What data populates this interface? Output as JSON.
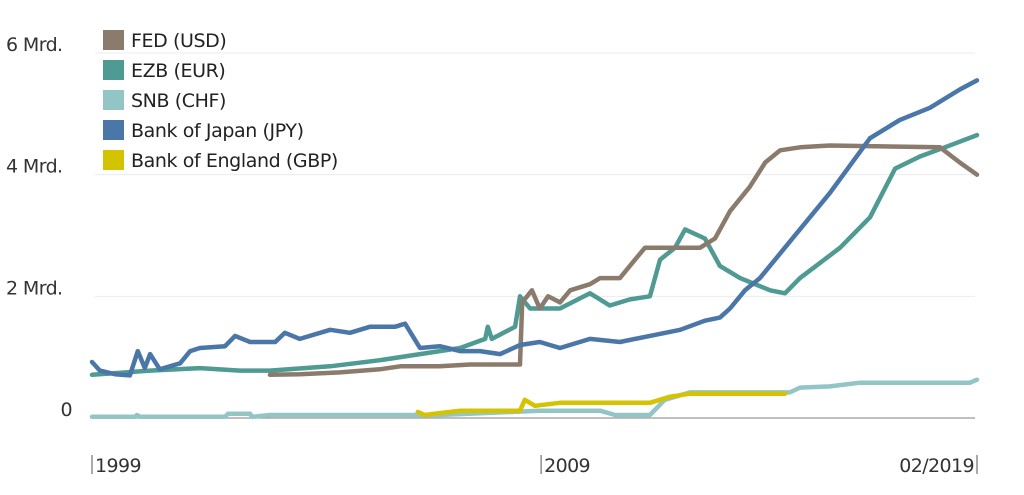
{
  "chart_data": {
    "type": "line",
    "title": "",
    "xlabel": "",
    "ylabel": "",
    "xlim": [
      1999,
      2019.1
    ],
    "ylim": [
      0,
      6
    ],
    "grid": true,
    "legend_placement": "top-left",
    "y_ticks": [
      {
        "value": 0,
        "label": "0"
      },
      {
        "value": 2,
        "label": "2 Mrd."
      },
      {
        "value": 4,
        "label": "4 Mrd."
      },
      {
        "value": 6,
        "label": "6 Mrd."
      }
    ],
    "x_ticks": [
      {
        "value": 1999,
        "label": "1999",
        "side": "right"
      },
      {
        "value": 2009.2,
        "label": "2009",
        "side": "right"
      },
      {
        "value": 2019.1,
        "label": "02/2019",
        "side": "left"
      }
    ],
    "series": [
      {
        "name": "FED (USD)",
        "color": "#8b7b6c",
        "x": [
          2003.04,
          2003.72,
          2004.63,
          2005.54,
          2006.0,
          2006.9,
          2007.59,
          2008.72,
          2008.77,
          2008.99,
          2009.17,
          2009.36,
          2009.63,
          2009.86,
          2010.31,
          2010.54,
          2010.99,
          2011.33,
          2011.56,
          2012.01,
          2012.81,
          2013.15,
          2013.49,
          2013.94,
          2014.29,
          2014.63,
          2015.08,
          2015.76,
          2018.26,
          2018.71,
          2019.1
        ],
        "y": [
          0.71,
          0.72,
          0.75,
          0.8,
          0.85,
          0.85,
          0.88,
          0.88,
          1.9,
          2.1,
          1.8,
          2.0,
          1.9,
          2.1,
          2.2,
          2.3,
          2.3,
          2.6,
          2.8,
          2.8,
          2.8,
          2.95,
          3.4,
          3.8,
          4.2,
          4.4,
          4.45,
          4.48,
          4.45,
          4.2,
          4.0
        ]
      },
      {
        "name": "EZB (EUR)",
        "color": "#4f9a92",
        "x": [
          1999,
          2000.32,
          2001.45,
          2002.36,
          2003.04,
          2004.41,
          2005.54,
          2006.45,
          2007.36,
          2007.93,
          2007.99,
          2008.08,
          2008.61,
          2008.72,
          2008.95,
          2009.63,
          2010.31,
          2010.76,
          2011.22,
          2011.67,
          2011.9,
          2012.24,
          2012.47,
          2012.92,
          2013.26,
          2013.72,
          2014.4,
          2014.74,
          2015.08,
          2015.99,
          2016.67,
          2017.24,
          2017.81,
          2018.37,
          2019.1
        ],
        "y": [
          0.71,
          0.78,
          0.82,
          0.78,
          0.78,
          0.85,
          0.95,
          1.05,
          1.15,
          1.3,
          1.5,
          1.3,
          1.5,
          2.0,
          1.8,
          1.8,
          2.05,
          1.85,
          1.95,
          2.0,
          2.6,
          2.8,
          3.1,
          2.95,
          2.5,
          2.3,
          2.1,
          2.05,
          2.3,
          2.8,
          3.3,
          4.1,
          4.3,
          4.45,
          4.65
        ]
      },
      {
        "name": "SNB (CHF)",
        "color": "#93c5c7",
        "x": [
          1999,
          1999.98,
          2000.02,
          2000.09,
          2002.02,
          2002.09,
          2002.59,
          2002.63,
          2003.04,
          2006.9,
          2009.17,
          2010.54,
          2010.88,
          2011.67,
          2012.01,
          2012.58,
          2014.85,
          2015.08,
          2015.76,
          2016.44,
          2018.94,
          2019.1
        ],
        "y": [
          0.02,
          0.02,
          0.05,
          0.02,
          0.02,
          0.07,
          0.07,
          0.02,
          0.05,
          0.05,
          0.12,
          0.12,
          0.05,
          0.05,
          0.3,
          0.42,
          0.42,
          0.5,
          0.52,
          0.58,
          0.58,
          0.63
        ]
      },
      {
        "name": "Bank of Japan (JPY)",
        "color": "#4a76a8",
        "x": [
          1999.0,
          1999.18,
          1999.52,
          1999.86,
          2000.04,
          2000.2,
          2000.32,
          2000.54,
          2001.0,
          2001.23,
          2001.45,
          2002.02,
          2002.25,
          2002.59,
          2003.16,
          2003.38,
          2003.72,
          2004.41,
          2004.86,
          2005.31,
          2005.88,
          2006.11,
          2006.45,
          2006.9,
          2007.36,
          2007.81,
          2008.27,
          2008.72,
          2009.17,
          2009.63,
          2010.31,
          2010.99,
          2011.67,
          2012.36,
          2012.92,
          2013.26,
          2013.49,
          2013.83,
          2014.17,
          2014.85,
          2015.76,
          2016.67,
          2017.35,
          2018.03,
          2018.71,
          2019.1
        ],
        "y": [
          0.92,
          0.78,
          0.72,
          0.7,
          1.1,
          0.82,
          1.05,
          0.8,
          0.9,
          1.1,
          1.15,
          1.18,
          1.35,
          1.25,
          1.25,
          1.4,
          1.3,
          1.45,
          1.4,
          1.5,
          1.5,
          1.55,
          1.15,
          1.18,
          1.1,
          1.1,
          1.05,
          1.2,
          1.25,
          1.15,
          1.3,
          1.25,
          1.35,
          1.45,
          1.6,
          1.65,
          1.8,
          2.1,
          2.3,
          2.9,
          3.7,
          4.6,
          4.9,
          5.1,
          5.4,
          5.55
        ]
      },
      {
        "name": "Bank of England (GBP)",
        "color": "#d3c300",
        "x": [
          2006.4,
          2006.56,
          2006.9,
          2007.36,
          2008.72,
          2008.83,
          2009.06,
          2009.63,
          2011.67,
          2012.13,
          2012.58,
          2014.74
        ],
        "y": [
          0.1,
          0.05,
          0.08,
          0.12,
          0.12,
          0.3,
          0.2,
          0.25,
          0.25,
          0.35,
          0.4,
          0.4
        ]
      }
    ]
  }
}
